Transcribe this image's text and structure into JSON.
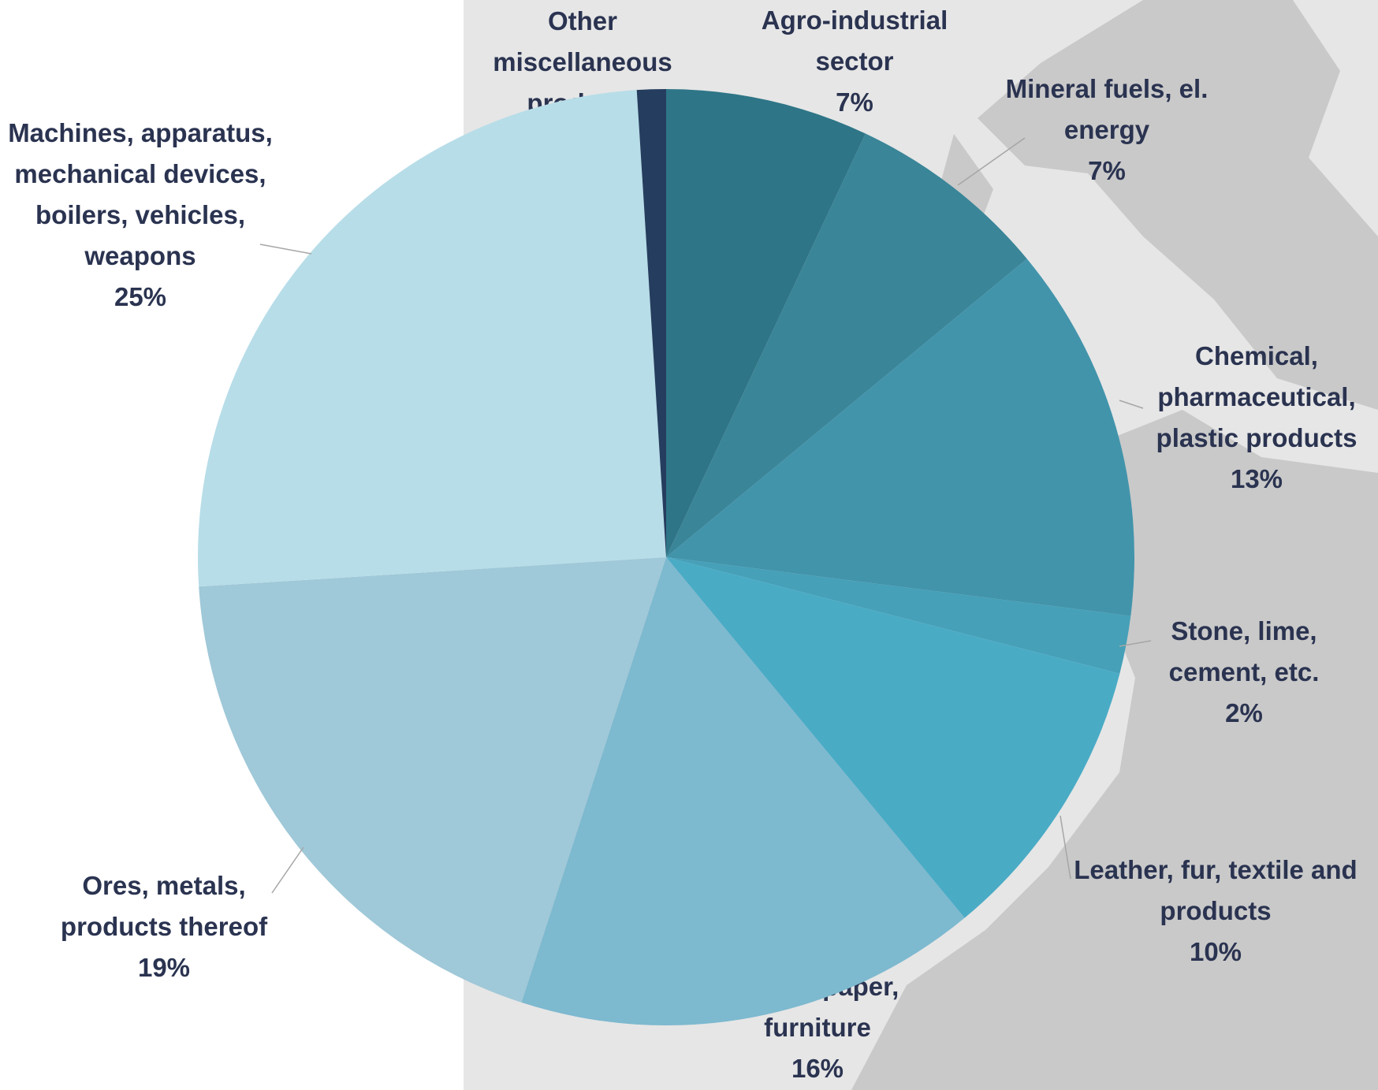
{
  "chart_data": {
    "type": "pie",
    "categories": [
      "Agro-industrial sector",
      "Mineral fuels, el. energy",
      "Chemical, pharmaceutical, plastic products",
      "Stone, lime, cement, etc.",
      "Leather, fur, textile and products",
      "Wood, paper, furniture",
      "Ores, metals, products thereof",
      "Machines, apparatus, mechanical devices, boilers, vehicles, weapons",
      "Other miscellaneous products"
    ],
    "values": [
      7,
      7,
      13,
      2,
      10,
      16,
      19,
      25,
      1
    ],
    "value_labels": [
      "7%",
      "7%",
      "13%",
      "2%",
      "10%",
      "16%",
      "19%",
      "25%",
      "1%"
    ],
    "colors": [
      "#2e7587",
      "#3a8598",
      "#4294ab",
      "#45a0b8",
      "#4aabc5",
      "#7db9cf",
      "#9fc8d8",
      "#b7dde8",
      "#253d5e"
    ]
  }
}
